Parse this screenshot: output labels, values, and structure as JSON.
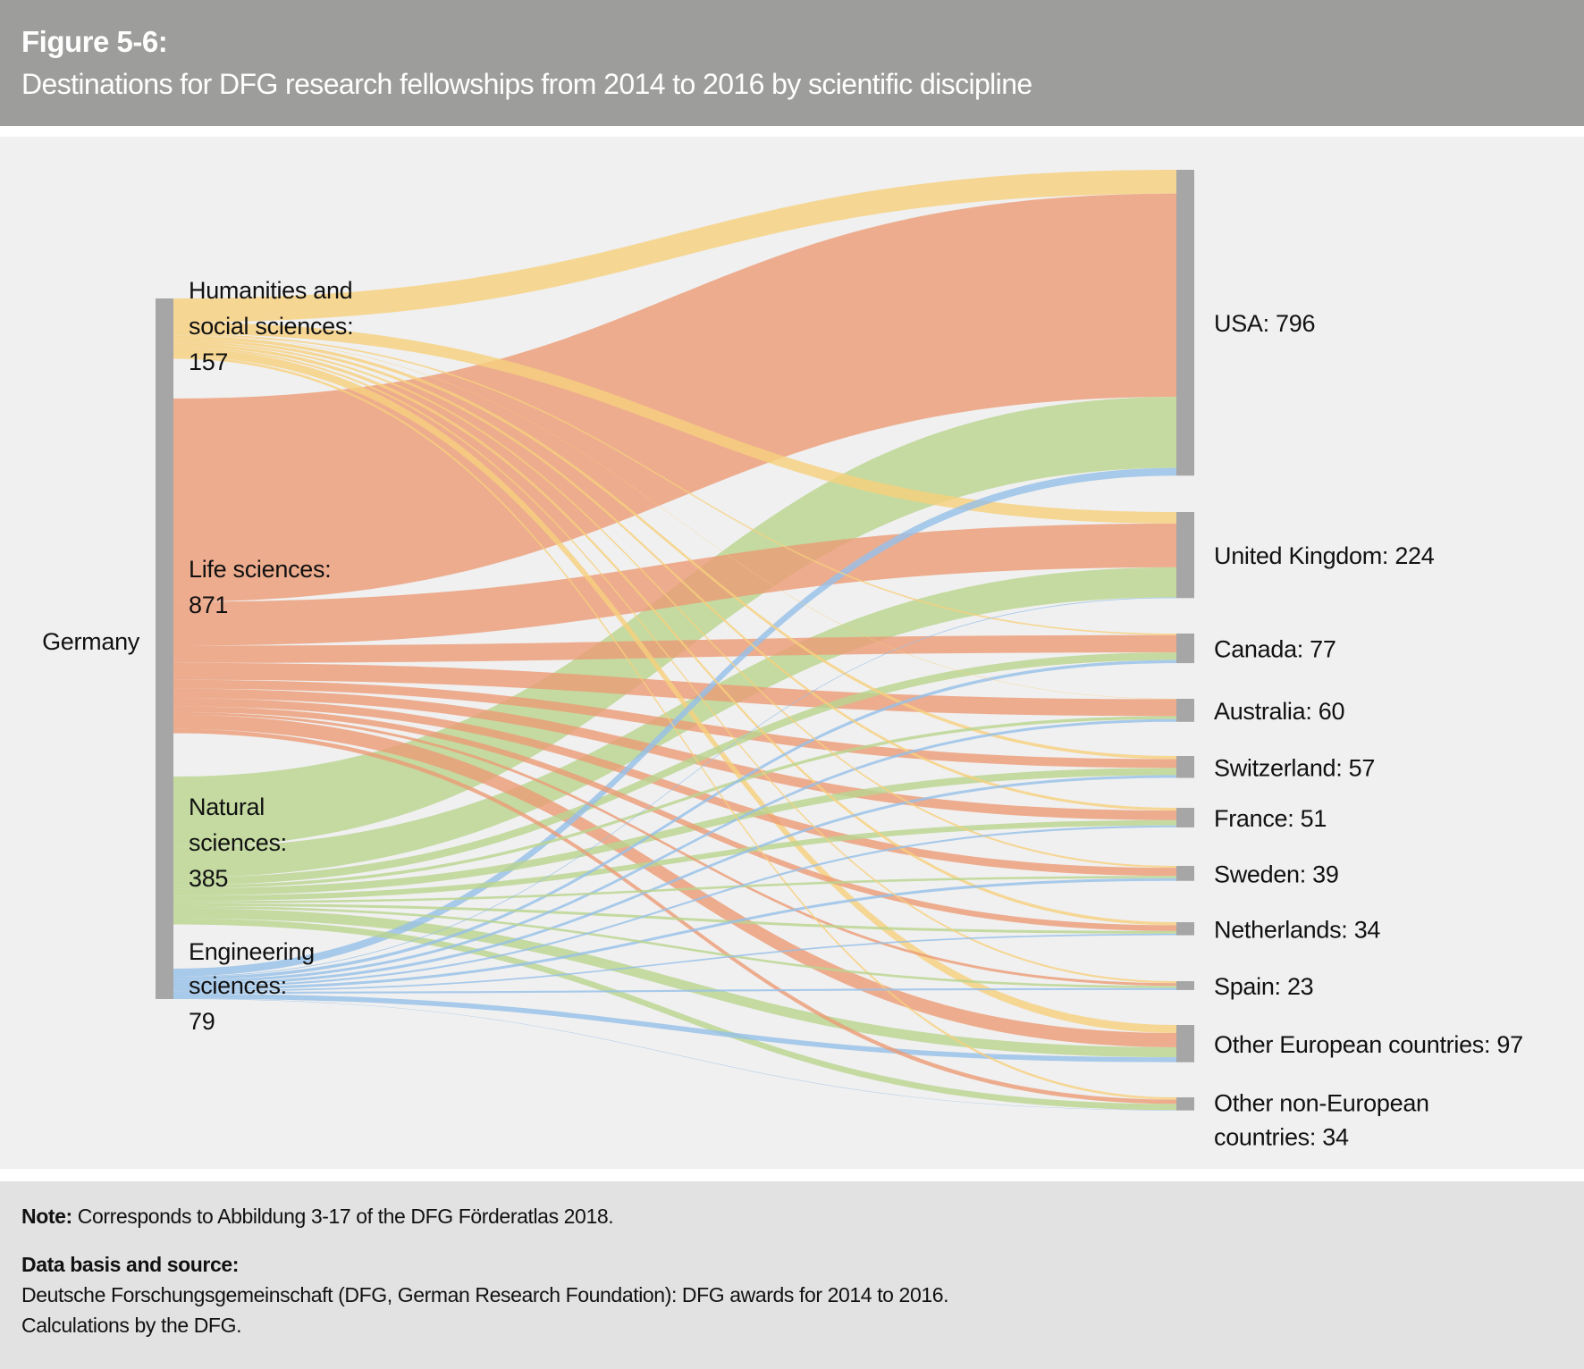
{
  "header": {
    "figure_label": "Figure 5-6:",
    "title": "Destinations for DFG research fellowships from 2014 to 2016 by scientific discipline"
  },
  "footer": {
    "note_label": "Note:",
    "note_text": " Corresponds to Abbildung 3-17 of the DFG Förderatlas 2018.",
    "source_label": "Data basis and source:",
    "source_line1": "Deutsche Forschungsgemeinschaft (DFG, German Research Foundation): DFG awards for 2014 to 2016.",
    "source_line2": "Calculations by the DFG."
  },
  "chart_data": {
    "type": "sankey",
    "title": "Destinations for DFG research fellowships from 2014 to 2016 by scientific discipline",
    "origin_label": "Germany",
    "sources": [
      {
        "name": "Humanities and social sciences",
        "label_lines": [
          "Humanities and",
          "social sciences:",
          "157"
        ],
        "total": 157,
        "color": "#f7cf7e"
      },
      {
        "name": "Life sciences",
        "label_lines": [
          "Life sciences:",
          "871"
        ],
        "total": 871,
        "color": "#eb9c78"
      },
      {
        "name": "Natural sciences",
        "label_lines": [
          "Natural",
          "sciences:",
          "385"
        ],
        "total": 385,
        "color": "#b9d48f"
      },
      {
        "name": "Engineering sciences",
        "label_lines": [
          "Engineering",
          "sciences:",
          "79"
        ],
        "total": 79,
        "color": "#96c0e8"
      }
    ],
    "targets": [
      {
        "name": "USA",
        "label_lines": [
          "USA: 796"
        ],
        "total": 796
      },
      {
        "name": "United Kingdom",
        "label_lines": [
          "United Kingdom: 224"
        ],
        "total": 224
      },
      {
        "name": "Canada",
        "label_lines": [
          "Canada: 77"
        ],
        "total": 77
      },
      {
        "name": "Australia",
        "label_lines": [
          "Australia: 60"
        ],
        "total": 60
      },
      {
        "name": "Switzerland",
        "label_lines": [
          "Switzerland: 57"
        ],
        "total": 57
      },
      {
        "name": "France",
        "label_lines": [
          "France: 51"
        ],
        "total": 51
      },
      {
        "name": "Sweden",
        "label_lines": [
          "Sweden: 39"
        ],
        "total": 39
      },
      {
        "name": "Netherlands",
        "label_lines": [
          "Netherlands: 34"
        ],
        "total": 34
      },
      {
        "name": "Spain",
        "label_lines": [
          "Spain: 23"
        ],
        "total": 23
      },
      {
        "name": "Other European countries",
        "label_lines": [
          "Other European countries: 97"
        ],
        "total": 97
      },
      {
        "name": "Other non-European countries",
        "label_lines": [
          "Other non-European",
          "countries: 34"
        ],
        "total": 34
      }
    ],
    "flows_note": "Flow values estimated from band widths; rows = sources, columns = targets in order above",
    "flows": [
      [
        62,
        30,
        4,
        1,
        8,
        7,
        5,
        8,
        5,
        21,
        6
      ],
      [
        529,
        114,
        45,
        44,
        23,
        25,
        21,
        15,
        7,
        37,
        11
      ],
      [
        185,
        78,
        20,
        8,
        19,
        14,
        6,
        7,
        6,
        26,
        16
      ],
      [
        20,
        2,
        8,
        7,
        7,
        5,
        7,
        4,
        5,
        13,
        1
      ]
    ],
    "node_color": "#a6a6a6"
  }
}
